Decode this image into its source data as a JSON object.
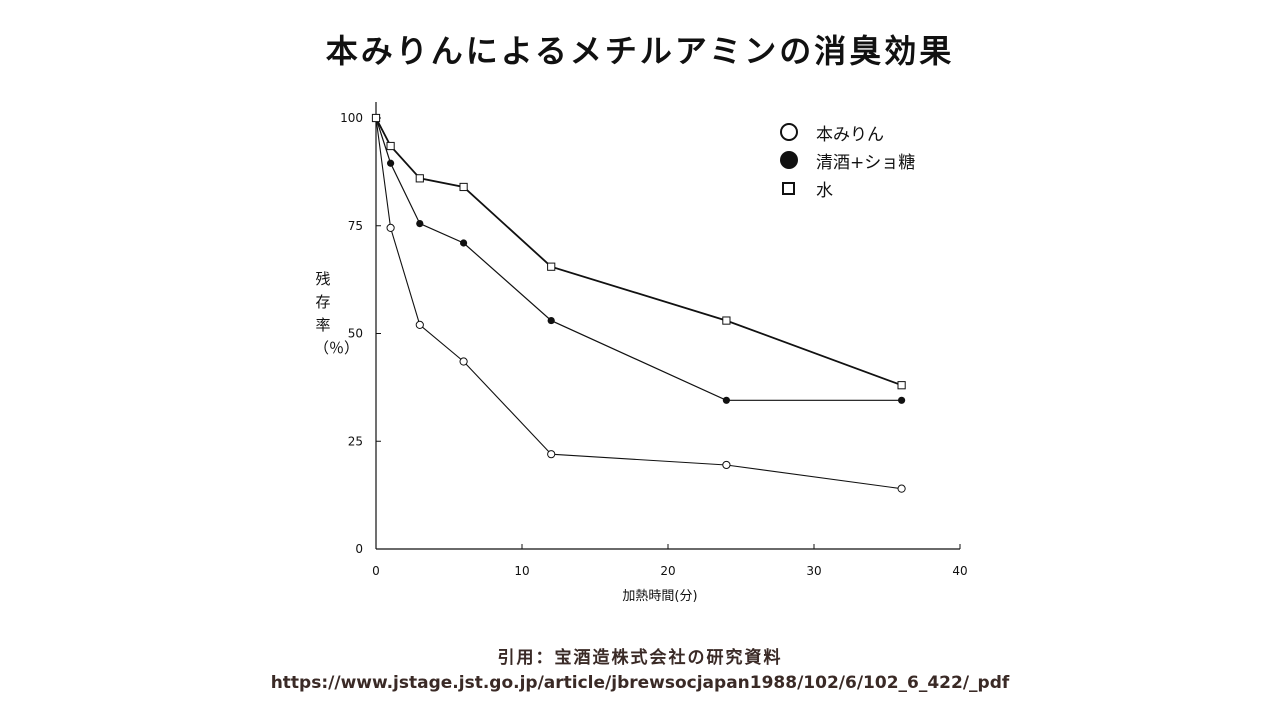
{
  "page": {
    "title": "本みりんによるメチルアミンの消臭効果",
    "citation": "引用：宝酒造株式会社の研究資料",
    "url": "https://www.jstage.jst.go.jp/article/jbrewsocjapan1988/102/6/102_6_422/_pdf"
  },
  "chart_data": {
    "type": "line",
    "title": "本みりんによるメチルアミンの消臭効果",
    "xlabel": "加熱時間(分)",
    "ylabel": "残存率（％）",
    "xlim": [
      0,
      40
    ],
    "ylim": [
      0,
      100
    ],
    "xticks": [
      "0",
      "10",
      "20",
      "30",
      "40"
    ],
    "yticks": [
      "0",
      "25",
      "50",
      "75",
      "100"
    ],
    "legend_position": "top-right",
    "x": [
      0,
      1,
      3,
      6,
      12,
      24,
      36
    ],
    "series": [
      {
        "name": "本みりん",
        "marker": "open-circle",
        "values": [
          100,
          74.5,
          52,
          43.5,
          22,
          19.5,
          14
        ]
      },
      {
        "name": "清酒+ショ糖",
        "marker": "filled-circle",
        "values": [
          100,
          89.5,
          75.5,
          71,
          53,
          34.5,
          34.5
        ]
      },
      {
        "name": "水",
        "marker": "open-square",
        "values": [
          100,
          93.5,
          86,
          84,
          65.5,
          53,
          38
        ]
      }
    ]
  }
}
